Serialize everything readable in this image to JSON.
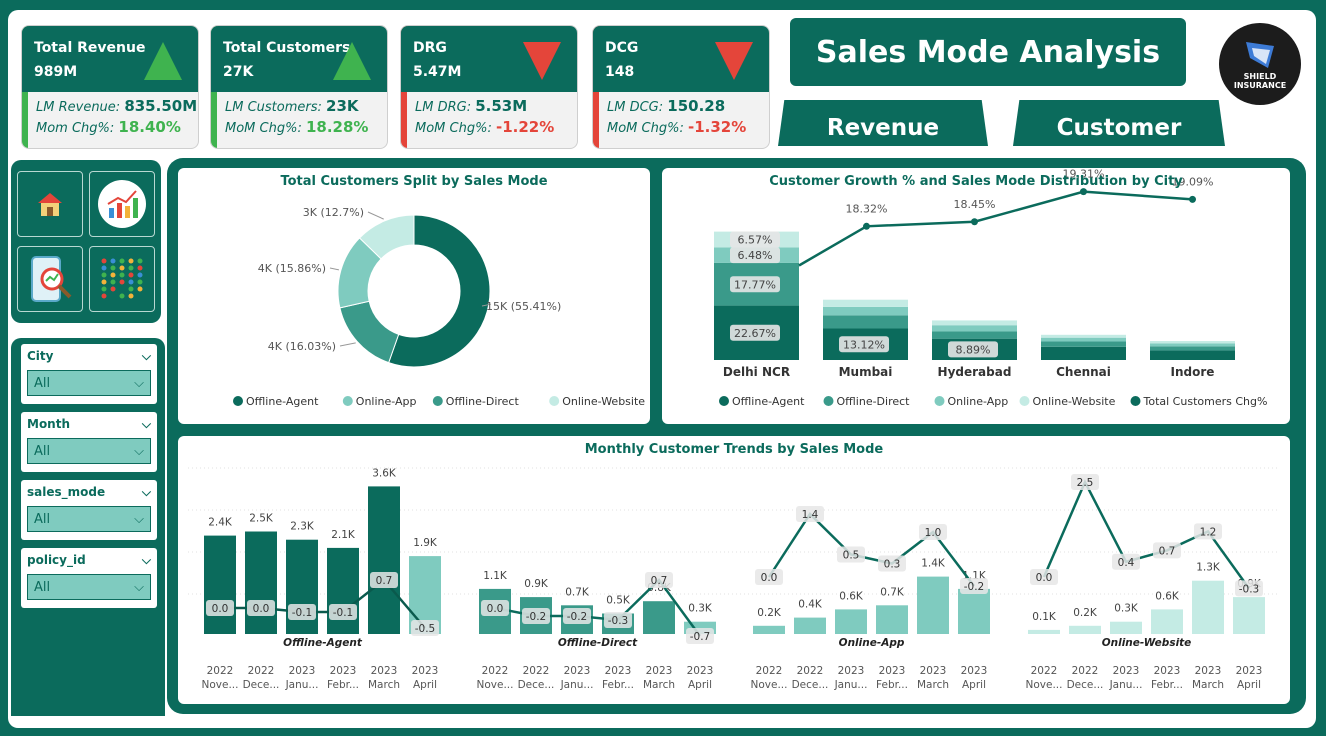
{
  "kpis": [
    {
      "title": "Total Revenue",
      "value": "989M",
      "lm_label": "LM Revenue:",
      "lm_value": "835.50M",
      "chg_label": "Mom Chg%:",
      "chg_value": "18.40%",
      "dir": "up"
    },
    {
      "title": "Total Customers",
      "value": "27K",
      "lm_label": "LM Customers:",
      "lm_value": "23K",
      "chg_label": "MoM Chg%:",
      "chg_value": "18.28%",
      "dir": "up"
    },
    {
      "title": "DRG",
      "value": "5.47M",
      "lm_label": "LM DRG:",
      "lm_value": "5.53M",
      "chg_label": "MoM Chg%:",
      "chg_value": "-1.22%",
      "dir": "down"
    },
    {
      "title": "DCG",
      "value": "148",
      "lm_label": "LM DCG:",
      "lm_value": "150.28",
      "chg_label": "MoM Chg%:",
      "chg_value": "-1.32%",
      "dir": "down"
    }
  ],
  "page_title": "Sales Mode Analysis",
  "tabs": {
    "revenue": "Revenue",
    "customer": "Customer"
  },
  "logo": {
    "line1": "SHIELD",
    "line2": "INSURANCE"
  },
  "nav_icons": [
    "home-icon",
    "growth-chart-icon",
    "search-analytics-icon",
    "dot-matrix-icon"
  ],
  "filters": [
    {
      "label": "City",
      "value": "All"
    },
    {
      "label": "Month",
      "value": "All"
    },
    {
      "label": "sales_mode",
      "value": "All"
    },
    {
      "label": "policy_id",
      "value": "All"
    }
  ],
  "colors": {
    "offline_agent": "#0b6b5c",
    "online_app": "#7fcbbf",
    "offline_direct": "#3a9a8a",
    "online_website": "#c4ebe4"
  },
  "chart_data": [
    {
      "type": "pie",
      "title": "Total Customers Split by Sales Mode",
      "categories": [
        "Offline-Agent",
        "Online-App",
        "Offline-Direct",
        "Online-Website"
      ],
      "values": [
        55.41,
        15.86,
        16.03,
        12.7
      ],
      "data_labels": [
        "15K (55.41%)",
        "4K (15.86%)",
        "4K (16.03%)",
        "3K (12.7%)"
      ],
      "legend": [
        "Offline-Agent",
        "Online-App",
        "Offline-Direct",
        "Online-Website"
      ],
      "legend_position": "bottom"
    },
    {
      "type": "bar",
      "title": "Customer Growth % and Sales Mode Distribution by City",
      "categories": [
        "Delhi NCR",
        "Mumbai",
        "Hyderabad",
        "Chennai",
        "Indore"
      ],
      "series": [
        {
          "name": "Offline-Agent",
          "values": [
            22.67,
            13.12,
            8.89,
            5.5,
            4.0
          ]
        },
        {
          "name": "Offline-Direct",
          "values": [
            17.77,
            5.5,
            3.0,
            2.2,
            1.7
          ]
        },
        {
          "name": "Online-App",
          "values": [
            6.48,
            3.5,
            2.6,
            1.6,
            1.2
          ]
        },
        {
          "name": "Online-Website",
          "values": [
            6.57,
            3.0,
            2.0,
            1.2,
            1.0
          ]
        }
      ],
      "bar_labels": [
        [
          "22.67%",
          "17.77%",
          "6.48%",
          "6.57%"
        ],
        [
          "13.12%"
        ],
        [
          "8.89%"
        ],
        [],
        []
      ],
      "line": {
        "name": "Total Customers Chg%",
        "values": [
          17.2,
          18.32,
          18.45,
          19.31,
          19.09
        ],
        "labels": [
          "",
          "18.32%",
          "18.45%",
          "19.31%",
          "19.09%"
        ]
      },
      "legend": [
        "Offline-Agent",
        "Offline-Direct",
        "Online-App",
        "Online-Website",
        "Total Customers Chg%"
      ],
      "legend_position": "bottom"
    },
    {
      "type": "bar",
      "title": "Monthly Customer Trends by Sales Mode",
      "x_year": [
        "2022",
        "2022",
        "2023",
        "2023",
        "2023",
        "2023"
      ],
      "x_month": [
        "Nove...",
        "Dece...",
        "Janu...",
        "Febr...",
        "March",
        "April"
      ],
      "groups": [
        {
          "name": "Offline-Agent",
          "bars": [
            2.4,
            2.5,
            2.3,
            2.1,
            3.6,
            1.9
          ],
          "bar_labels": [
            "2.4K",
            "2.5K",
            "2.3K",
            "2.1K",
            "3.6K",
            "1.9K"
          ],
          "line": [
            0.0,
            0.0,
            -0.1,
            -0.1,
            0.7,
            -0.5
          ],
          "line_labels": [
            "0.0",
            "0.0",
            "-0.1",
            "-0.1",
            "0.7",
            "-0.5"
          ]
        },
        {
          "name": "Offline-Direct",
          "bars": [
            1.1,
            0.9,
            0.7,
            0.5,
            0.8,
            0.3
          ],
          "bar_labels": [
            "1.1K",
            "0.9K",
            "0.7K",
            "0.5K",
            "0.8K",
            "0.3K"
          ],
          "line": [
            0.0,
            -0.2,
            -0.2,
            -0.3,
            0.7,
            -0.7
          ],
          "line_labels": [
            "0.0",
            "-0.2",
            "-0.2",
            "-0.3",
            "0.7",
            "-0.7"
          ]
        },
        {
          "name": "Online-App",
          "bars": [
            0.2,
            0.4,
            0.6,
            0.7,
            1.4,
            1.1
          ],
          "bar_labels": [
            "0.2K",
            "0.4K",
            "0.6K",
            "0.7K",
            "1.4K",
            "1.1K"
          ],
          "line": [
            0.0,
            1.4,
            0.5,
            0.3,
            1.0,
            -0.2
          ],
          "line_labels": [
            "0.0",
            "1.4",
            "0.5",
            "0.3",
            "1.0",
            "-0.2"
          ]
        },
        {
          "name": "Online-Website",
          "bars": [
            0.1,
            0.2,
            0.3,
            0.6,
            1.3,
            0.9
          ],
          "bar_labels": [
            "0.1K",
            "0.2K",
            "0.3K",
            "0.6K",
            "1.3K",
            "0.9K"
          ],
          "line": [
            0.0,
            2.5,
            0.4,
            0.7,
            1.2,
            -0.3
          ],
          "line_labels": [
            "0.0",
            "2.5",
            "0.4",
            "0.7",
            "1.2",
            "-0.3"
          ]
        }
      ]
    }
  ]
}
